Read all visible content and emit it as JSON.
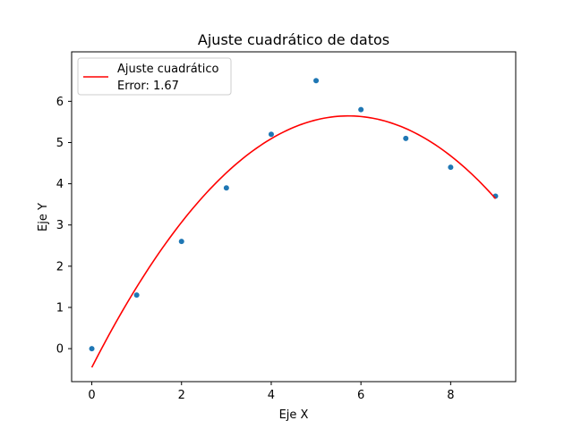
{
  "chart_data": {
    "type": "scatter",
    "title": "Ajuste cuadrático de datos",
    "xlabel": "Eje X",
    "ylabel": "Eje Y",
    "xlim": [
      -0.45,
      9.45
    ],
    "ylim": [
      -0.8,
      7.2
    ],
    "xticks": [
      0,
      2,
      4,
      6,
      8
    ],
    "yticks": [
      0,
      1,
      2,
      3,
      4,
      5,
      6
    ],
    "grid": false,
    "legend_position": "top-left",
    "series": [
      {
        "kind": "scatter",
        "color": "#1f77b4",
        "x": [
          0,
          1,
          2,
          3,
          4,
          5,
          6,
          7,
          8,
          9
        ],
        "y": [
          0.0,
          1.3,
          2.6,
          3.9,
          5.2,
          6.5,
          5.8,
          5.1,
          4.4,
          3.7
        ]
      },
      {
        "kind": "line",
        "name": "Ajuste cuadrático",
        "color": "#ff0000",
        "x_range": [
          0,
          9
        ],
        "coefficients": {
          "a": -0.1864,
          "b": 2.1326,
          "c": -0.4545
        }
      }
    ],
    "legend": {
      "entries": [
        "Ajuste cuadrático",
        "Error: 1.67"
      ]
    }
  }
}
